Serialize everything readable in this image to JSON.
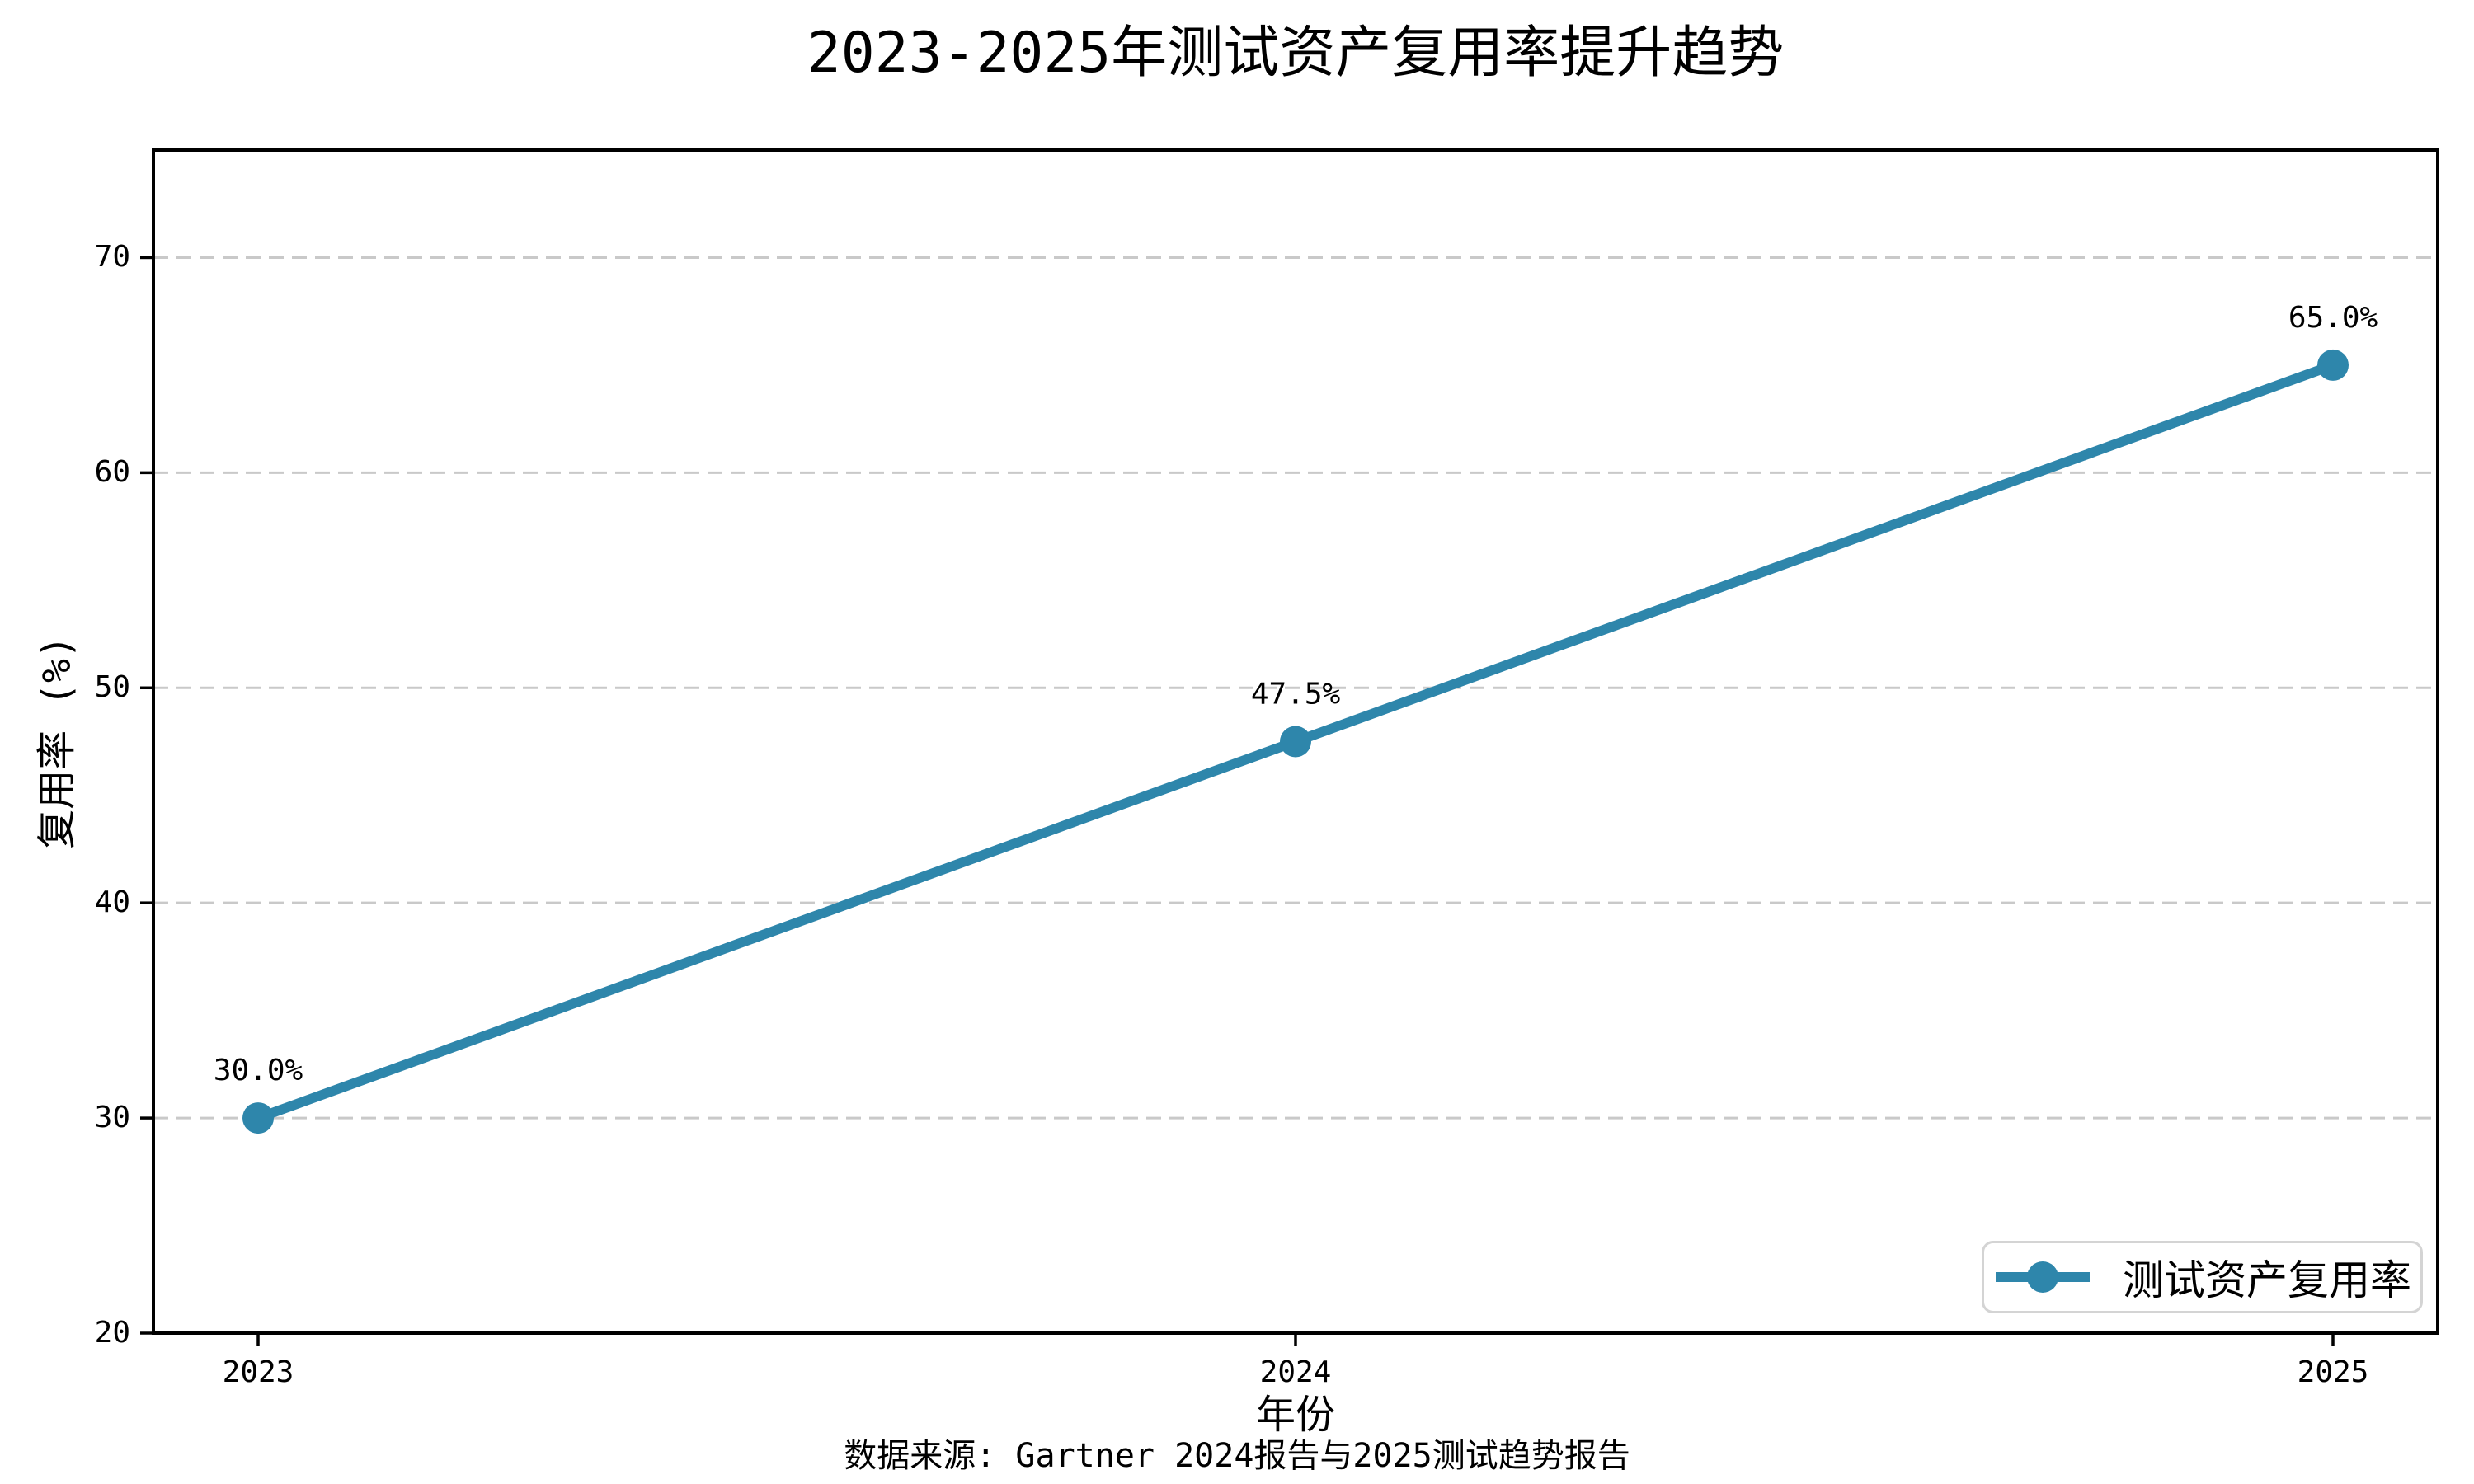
{
  "chart_data": {
    "type": "line",
    "title": "2023-2025年测试资产复用率提升趋势",
    "xlabel": "年份",
    "ylabel": "复用率 (%)",
    "x": [
      2023,
      2024,
      2025
    ],
    "categories": [
      "2023",
      "2024",
      "2025"
    ],
    "series": [
      {
        "name": "测试资产复用率",
        "values": [
          30.0,
          47.5,
          65.0
        ]
      }
    ],
    "point_labels": [
      "30.0%",
      "47.5%",
      "65.0%"
    ],
    "ylim": [
      20,
      75
    ],
    "yticks": [
      20,
      30,
      40,
      50,
      60,
      70
    ],
    "grid": "horizontal-dashed",
    "legend_position": "lower right",
    "colors": {
      "line": "#2E86AB",
      "marker": "#2E86AB",
      "grid": "#c9c9c9",
      "spine": "#000000",
      "legend_border": "#d4d4d4",
      "text": "#000000"
    },
    "source_note": "数据来源: Gartner 2024报告与2025测试趋势报告"
  }
}
